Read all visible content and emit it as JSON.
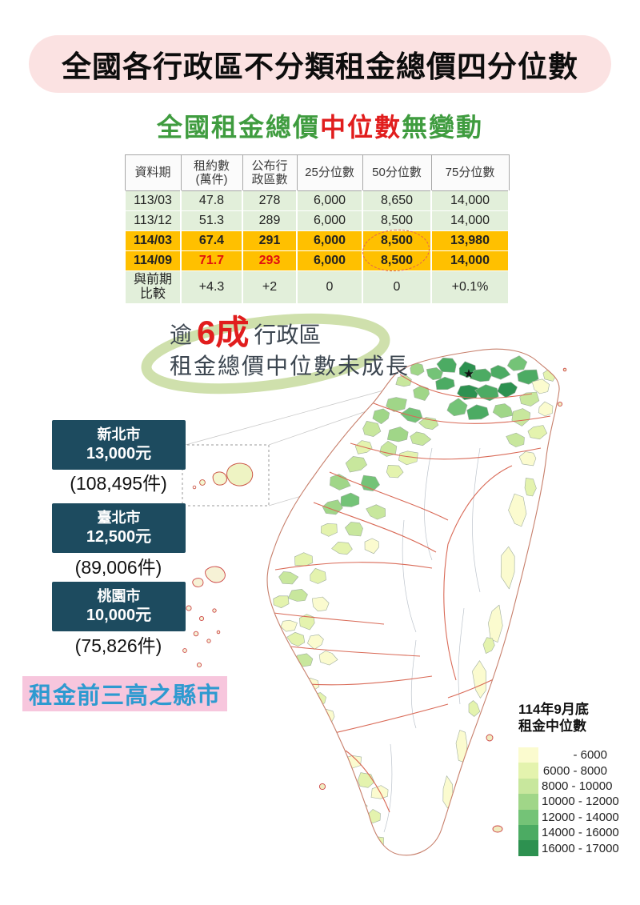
{
  "header": {
    "title": "全國各行政區不分類租金總價四分位數",
    "subtitle_part1": "全國租金總價",
    "subtitle_highlight": "中位數",
    "subtitle_part2": "無變動"
  },
  "table": {
    "headers": [
      "資料期",
      "租約數\n(萬件)",
      "公布行\n政區數",
      "25分位數",
      "50分位數",
      "75分位數"
    ],
    "rows": [
      {
        "cells": [
          "113/03",
          "47.8",
          "278",
          "6,000",
          "8,650",
          "14,000"
        ]
      },
      {
        "cells": [
          "113/12",
          "51.3",
          "289",
          "6,000",
          "8,500",
          "14,000"
        ]
      },
      {
        "cells": [
          "114/03",
          "67.4",
          "291",
          "6,000",
          "8,500",
          "13,980"
        ]
      },
      {
        "cells": [
          "114/09",
          "71.7",
          "293",
          "6,000",
          "8,500",
          "14,000"
        ]
      },
      {
        "cells": [
          "與前期\n比較",
          "+4.3",
          "+2",
          "0",
          "0",
          "+0.1%"
        ]
      }
    ]
  },
  "annotation": {
    "prefix": "逾",
    "big": "6成",
    "suffix": "行政區",
    "line2": "租金總價中位數未成長"
  },
  "callouts": [
    {
      "city": "新北市",
      "price": "13,000元",
      "count": "(108,495件)"
    },
    {
      "city": "臺北市",
      "price": "12,500元",
      "count": "(89,006件)"
    },
    {
      "city": "桃園市",
      "price": "10,000元",
      "count": "(75,826件)"
    }
  ],
  "footnote": "租金前三高之縣市",
  "legend": {
    "title_line1": "114年9月底",
    "title_line2": "租金中位數",
    "items": [
      {
        "label": "- 6000",
        "color": "#fbfbcf"
      },
      {
        "label": "6000 - 8000",
        "color": "#e4f3ae"
      },
      {
        "label": "8000 - 10000",
        "color": "#c8e79d"
      },
      {
        "label": "10000 - 12000",
        "color": "#a0d688"
      },
      {
        "label": "12000 - 14000",
        "color": "#74c377"
      },
      {
        "label": "14000 - 16000",
        "color": "#4cab63"
      },
      {
        "label": "16000 - 17000",
        "color": "#2d9150"
      }
    ]
  },
  "colors": {
    "title_bg": "#fbe2e2",
    "subtitle_green": "#3f9c3f",
    "subtitle_red": "#e11d1d",
    "table_row_green": "#e2efda",
    "table_row_orange": "#ffc000",
    "callout_bg": "#1d4b5f",
    "footnote_bg": "#f7c6dd",
    "footnote_text": "#2e9ad0",
    "county_border": "#d96a57"
  }
}
